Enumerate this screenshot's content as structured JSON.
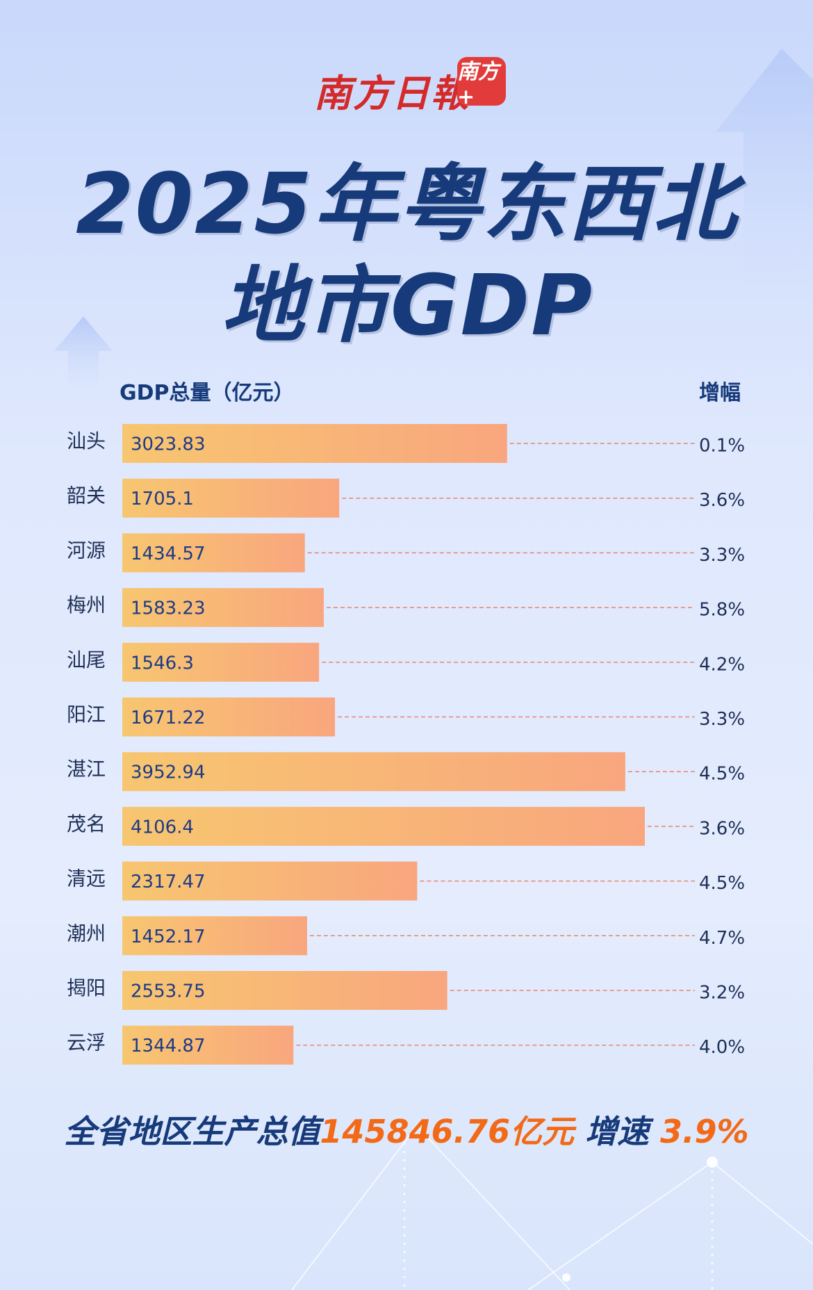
{
  "masthead": {
    "name": "南方日報",
    "app_badge": "南方+"
  },
  "title": {
    "line1": "2025年粤东西北",
    "line2": "地市GDP"
  },
  "chart_data": {
    "type": "bar",
    "orientation": "horizontal",
    "xlabel": "GDP总量（亿元）",
    "growth_header": "增幅",
    "categories": [
      "汕头",
      "韶关",
      "河源",
      "梅州",
      "汕尾",
      "阳江",
      "湛江",
      "茂名",
      "清远",
      "潮州",
      "揭阳",
      "云浮"
    ],
    "values": [
      3023.83,
      1705.1,
      1434.57,
      1583.23,
      1546.3,
      1671.22,
      3952.94,
      4106.4,
      2317.47,
      1452.17,
      2553.75,
      1344.87
    ],
    "value_labels": [
      "3023.83",
      "1705.1",
      "1434.57",
      "1583.23",
      "1546.3",
      "1671.22",
      "3952.94",
      "4106.4",
      "2317.47",
      "1452.17",
      "2553.75",
      "1344.87"
    ],
    "growth": [
      "0.1%",
      "3.6%",
      "3.3%",
      "5.8%",
      "4.2%",
      "3.3%",
      "4.5%",
      "3.6%",
      "4.5%",
      "4.7%",
      "3.2%",
      "4.0%"
    ],
    "xlim": [
      0,
      4106.4
    ],
    "bar_gradient": [
      "#f7c670",
      "#f9a67e"
    ],
    "leader_line_color": "#e9846b",
    "grid": false
  },
  "footer": {
    "prefix": "全省地区生产总值",
    "total": "145846.76亿元",
    "growth_label": "增速",
    "growth_value": "3.9%",
    "accent_color": "#f26a17"
  }
}
